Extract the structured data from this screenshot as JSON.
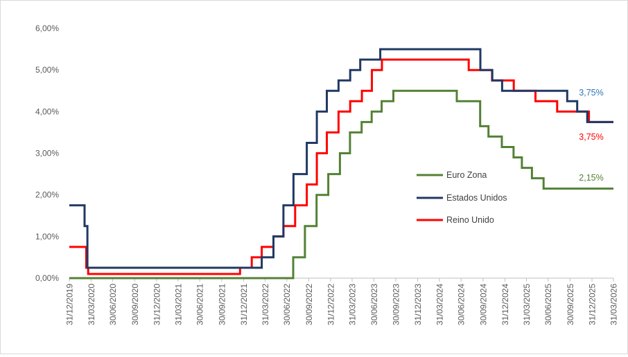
{
  "chart_data": {
    "type": "line",
    "step": true,
    "y_unit": "%",
    "ylim": [
      0,
      6
    ],
    "y_ticks": [
      "0,00%",
      "1,00%",
      "2,00%",
      "3,00%",
      "4,00%",
      "5,00%",
      "6,00%"
    ],
    "x_range": [
      "2019-12-31",
      "2026-03-31"
    ],
    "x_ticks": [
      "31/12/2019",
      "31/03/2020",
      "30/06/2020",
      "30/09/2020",
      "31/12/2020",
      "31/03/2021",
      "30/06/2021",
      "30/09/2021",
      "31/12/2021",
      "31/03/2022",
      "30/06/2022",
      "30/09/2022",
      "31/12/2022",
      "31/03/2023",
      "30/06/2023",
      "30/09/2023",
      "31/12/2023",
      "31/03/2024",
      "30/06/2024",
      "30/09/2024",
      "31/12/2024",
      "31/03/2025",
      "30/06/2025",
      "30/09/2025",
      "31/12/2025",
      "31/03/2026"
    ],
    "grid": false,
    "legend": "center-right",
    "series": [
      {
        "name": "Euro Zona",
        "color": "#538135",
        "end_label": "2,15%",
        "points": [
          [
            "2019-12-31",
            0
          ],
          [
            "2022-07-27",
            0.5
          ],
          [
            "2022-09-14",
            1.25
          ],
          [
            "2022-11-02",
            2.0
          ],
          [
            "2022-12-21",
            2.5
          ],
          [
            "2023-02-08",
            3.0
          ],
          [
            "2023-03-22",
            3.5
          ],
          [
            "2023-05-10",
            3.75
          ],
          [
            "2023-06-21",
            4.0
          ],
          [
            "2023-08-02",
            4.25
          ],
          [
            "2023-09-20",
            4.5
          ],
          [
            "2024-06-12",
            4.25
          ],
          [
            "2024-09-18",
            3.65
          ],
          [
            "2024-10-23",
            3.4
          ],
          [
            "2024-12-18",
            3.15
          ],
          [
            "2025-02-05",
            2.9
          ],
          [
            "2025-03-12",
            2.65
          ],
          [
            "2025-04-23",
            2.4
          ],
          [
            "2025-06-11",
            2.15
          ],
          [
            "2026-03-31",
            2.15
          ]
        ]
      },
      {
        "name": "Estados Unidos",
        "color": "#203864",
        "end_label": "3,75%",
        "label_color": "#2E75B6",
        "points": [
          [
            "2019-12-31",
            1.75
          ],
          [
            "2020-03-04",
            1.25
          ],
          [
            "2020-03-16",
            0.25
          ],
          [
            "2022-03-17",
            0.5
          ],
          [
            "2022-05-05",
            1.0
          ],
          [
            "2022-06-16",
            1.75
          ],
          [
            "2022-07-28",
            2.5
          ],
          [
            "2022-09-22",
            3.25
          ],
          [
            "2022-11-03",
            4.0
          ],
          [
            "2022-12-15",
            4.5
          ],
          [
            "2023-02-02",
            4.75
          ],
          [
            "2023-03-23",
            5.0
          ],
          [
            "2023-05-04",
            5.25
          ],
          [
            "2023-07-27",
            5.5
          ],
          [
            "2024-09-19",
            5.0
          ],
          [
            "2024-11-08",
            4.75
          ],
          [
            "2024-12-19",
            4.5
          ],
          [
            "2025-09-18",
            4.25
          ],
          [
            "2025-10-30",
            4.0
          ],
          [
            "2025-12-11",
            3.75
          ],
          [
            "2026-03-31",
            3.75
          ]
        ]
      },
      {
        "name": "Reino Unido",
        "color": "#ff0000",
        "end_label": "3,75%",
        "points": [
          [
            "2019-12-31",
            0.75
          ],
          [
            "2020-03-11",
            0.25
          ],
          [
            "2020-03-19",
            0.1
          ],
          [
            "2021-12-16",
            0.25
          ],
          [
            "2022-02-03",
            0.5
          ],
          [
            "2022-03-17",
            0.75
          ],
          [
            "2022-05-05",
            1.0
          ],
          [
            "2022-06-16",
            1.25
          ],
          [
            "2022-08-04",
            1.75
          ],
          [
            "2022-09-22",
            2.25
          ],
          [
            "2022-11-03",
            3.0
          ],
          [
            "2022-12-15",
            3.5
          ],
          [
            "2023-02-02",
            4.0
          ],
          [
            "2023-03-23",
            4.25
          ],
          [
            "2023-05-11",
            4.5
          ],
          [
            "2023-06-22",
            5.0
          ],
          [
            "2023-08-03",
            5.25
          ],
          [
            "2024-08-01",
            5.0
          ],
          [
            "2024-11-07",
            4.75
          ],
          [
            "2025-02-06",
            4.5
          ],
          [
            "2025-05-08",
            4.25
          ],
          [
            "2025-08-07",
            4.0
          ],
          [
            "2025-12-18",
            3.75
          ],
          [
            "2026-03-31",
            3.75
          ]
        ]
      }
    ]
  }
}
